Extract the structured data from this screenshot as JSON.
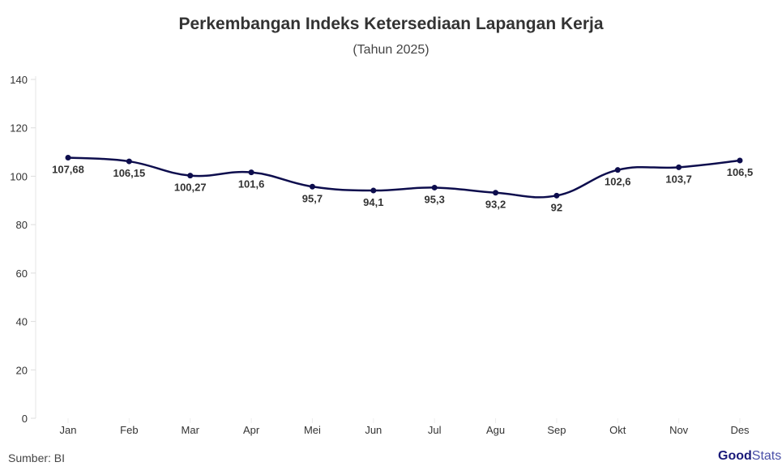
{
  "chart_data": {
    "type": "line",
    "title": "Perkembangan Indeks Ketersediaan Lapangan Kerja",
    "subtitle": "(Tahun 2025)",
    "categories": [
      "Jan",
      "Feb",
      "Mar",
      "Apr",
      "Mei",
      "Jun",
      "Jul",
      "Agu",
      "Sep",
      "Okt",
      "Nov",
      "Des"
    ],
    "values": [
      107.68,
      106.15,
      100.27,
      101.6,
      95.7,
      94.1,
      95.3,
      93.2,
      92,
      102.6,
      103.7,
      106.5
    ],
    "data_labels": [
      "107,68",
      "106,15",
      "100,27",
      "101,6",
      "95,7",
      "94,1",
      "95,3",
      "93,2",
      "92",
      "102,6",
      "103,7",
      "106,5"
    ],
    "ylim": [
      0,
      140
    ],
    "yticks": [
      0,
      20,
      40,
      60,
      80,
      100,
      120,
      140
    ],
    "grid": false,
    "line_color": "#0d0d4d",
    "smooth": true
  },
  "source": "Sumber: BI",
  "logo": {
    "bold": "Good",
    "light": "Stats"
  }
}
